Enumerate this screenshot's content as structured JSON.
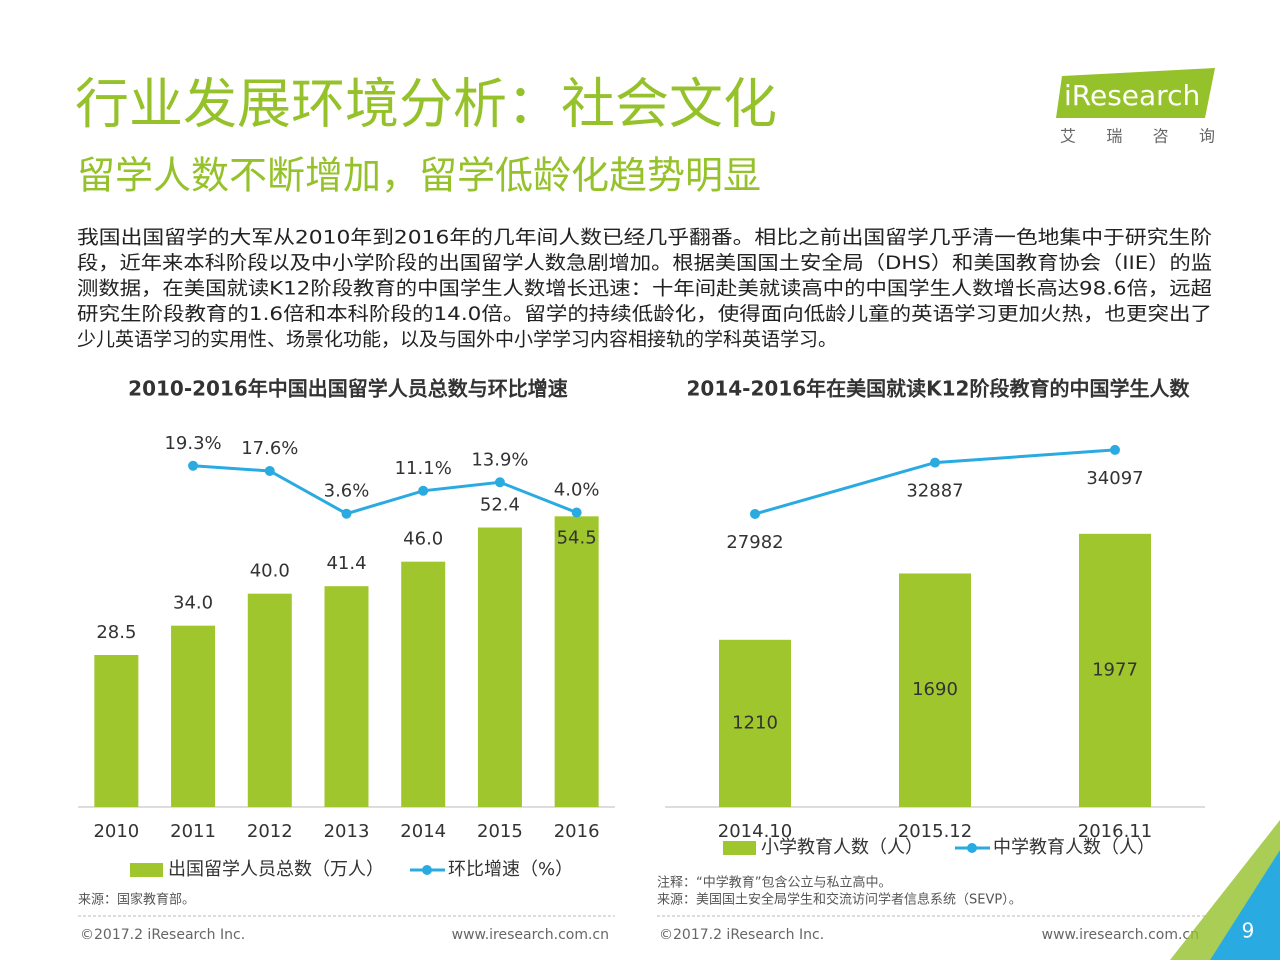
{
  "header": {
    "title": "行业发展环境分析：社会文化",
    "subtitle": "留学人数不断增加，留学低龄化趋势明显",
    "logo": "iResearch",
    "logo_sub": "艾 瑞 咨 询"
  },
  "body": [
    "我国出国留学的大军从2010年到2016年的几年间人数已经几乎翻番。相比之前出国留学几乎清一色地集中于研究生阶",
    "段，近年来本科阶段以及中小学阶段的出国留学人数急剧增加。根据美国国土安全局（DHS）和美国教育协会（IIE）的监",
    "测数据，在美国就读K12阶段教育的中国学生人数增长迅速：十年间赴美就读高中的中国学生人数增长高达98.6倍，远超",
    "研究生阶段教育的1.6倍和本科阶段的14.0倍。留学的持续低龄化，使得面向低龄儿童的英语学习更加火热，也更突出了",
    "少儿英语学习的实用性、场景化功能，以及与国外中小学学习内容相接轨的学科英语学习。"
  ],
  "chart_data": [
    {
      "type": "bar",
      "title": "2010-2016年中国出国留学人员总数与环比增速",
      "categories": [
        "2010",
        "2011",
        "2012",
        "2013",
        "2014",
        "2015",
        "2016"
      ],
      "series": [
        {
          "name": "出国留学人员总数（万人）",
          "color": "#9fc62d",
          "values": [
            28.5,
            34,
            40,
            41.4,
            46,
            52.4,
            54.5
          ],
          "value_labels": [
            "28.5",
            "34.0",
            "40.0",
            "41.4",
            "46.0",
            "52.4",
            "54.5"
          ]
        },
        {
          "name": "环比增速（%）",
          "color": "#29abe2",
          "type": "line",
          "axis": "y2",
          "values": [
            null,
            19.3,
            17.6,
            3.6,
            11.1,
            13.9,
            4.0
          ],
          "value_labels": [
            null,
            "19.3%",
            "17.6%",
            "3.6%",
            "11.1%",
            "13.9%",
            "4.0%"
          ]
        }
      ],
      "ylim": [
        0,
        60
      ],
      "y2lim": [
        -5,
        31
      ],
      "source": "来源：国家教育部。"
    },
    {
      "type": "bar",
      "title": "2014-2016年在美国就读K12阶段教育的中国学生人数",
      "categories": [
        "2014.10",
        "2015.12",
        "2016.11"
      ],
      "series": [
        {
          "name": "小学教育人数（人）",
          "color": "#9fc62d",
          "values": [
            1210,
            1690,
            1977
          ]
        },
        {
          "name": "中学教育人数（人）",
          "color": "#29abe2",
          "type": "line",
          "axis": "y2",
          "values": [
            27982,
            32887,
            34097
          ]
        }
      ],
      "ylim": [
        0,
        2200
      ],
      "y2lim": [
        0,
        36000
      ],
      "note": "注释：“中学教育”包含公立与私立高中。",
      "source": "来源：美国国土安全局学生和交流访问学者信息系统（SEVP）。"
    }
  ],
  "footer": {
    "copyright": "©2017.2 iResearch Inc.",
    "url": "www.iresearch.com.cn"
  },
  "page_number": "9"
}
